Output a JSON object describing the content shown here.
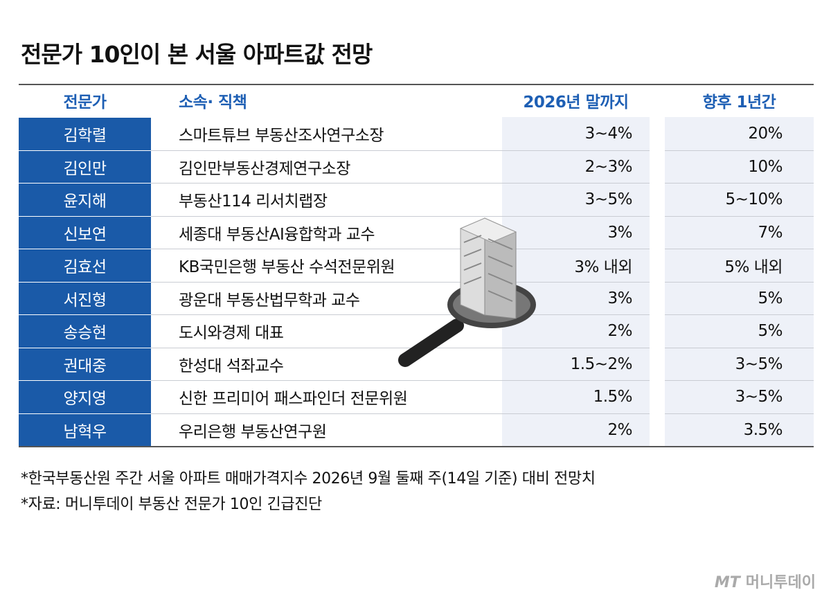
{
  "header": {
    "title": "전문가 10인이 본 서울 아파트값 전망"
  },
  "table": {
    "columns": [
      "전문가",
      "소속· 직책",
      "2026년 말까지",
      "향후 1년간"
    ],
    "rows": [
      [
        "김학렬",
        "스마트튜브 부동산조사연구소장",
        "3~4%",
        "20%"
      ],
      [
        "김인만",
        "김인만부동산경제연구소장",
        "2~3%",
        "10%"
      ],
      [
        "윤지해",
        "부동산114 리서치랩장",
        "3~5%",
        "5~10%"
      ],
      [
        "신보연",
        "세종대 부동산AI융합학과 교수",
        "3%",
        "7%"
      ],
      [
        "김효선",
        "KB국민은행 부동산 수석전문위원",
        "3% 내외",
        "5% 내외"
      ],
      [
        "서진형",
        "광운대 부동산법무학과 교수",
        "3%",
        "5%"
      ],
      [
        "송승현",
        "도시와경제 대표",
        "2%",
        "5%"
      ],
      [
        "권대중",
        "한성대 석좌교수",
        "1.5~2%",
        "3~5%"
      ],
      [
        "양지영",
        "신한 프리미어 패스파인더 전문위원",
        "1.5%",
        "3~5%"
      ],
      [
        "남혁우",
        "우리은행 부동산연구원",
        "2%",
        "3.5%"
      ]
    ]
  },
  "footnotes": [
    "*한국부동산원 주간 서울 아파트 매매가격지수 2026년 9월 둘째 주(14일 기준) 대비 전망치",
    "*자료: 머니투데이 부동산 전문가 10인 긴급진단"
  ],
  "watermark": {
    "logo": "MT",
    "name": "머니투데이"
  }
}
